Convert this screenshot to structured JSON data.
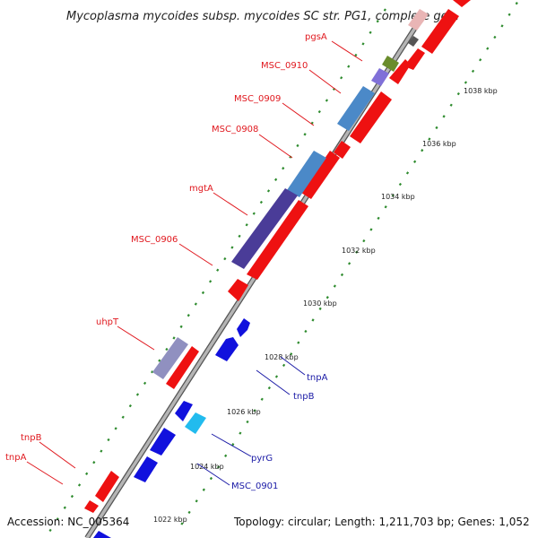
{
  "title": "Mycoplasma mycoides subsp. mycoides SC str. PG1, complete ge...",
  "footer": {
    "accession": "Accession: NC_005364",
    "topology": "Topology: circular; Length: 1,211,703 bp; Genes: 1,052"
  },
  "colors": {
    "forward_gene": "#ee1111",
    "reverse_gene": "#1111dd",
    "backbone": "#9a9a9a",
    "tick_dots": "#2e8b2e",
    "label_forward": "#e0181e",
    "label_reverse": "#1a1aa6"
  },
  "ticks": [
    "1022 kbp",
    "1024 kbp",
    "1026 kbp",
    "1028 kbp",
    "1030 kbp",
    "1032 kbp",
    "1034 kbp",
    "1036 kbp",
    "1038 kbp"
  ],
  "labels": {
    "forward": [
      "pgsA",
      "MSC_0910",
      "MSC_0909",
      "MSC_0908",
      "mgtA",
      "MSC_0906",
      "uhpT",
      "tnpB",
      "tnpA"
    ],
    "reverse": [
      "tnpA",
      "tnpB",
      "pyrG",
      "MSC_0901"
    ]
  }
}
